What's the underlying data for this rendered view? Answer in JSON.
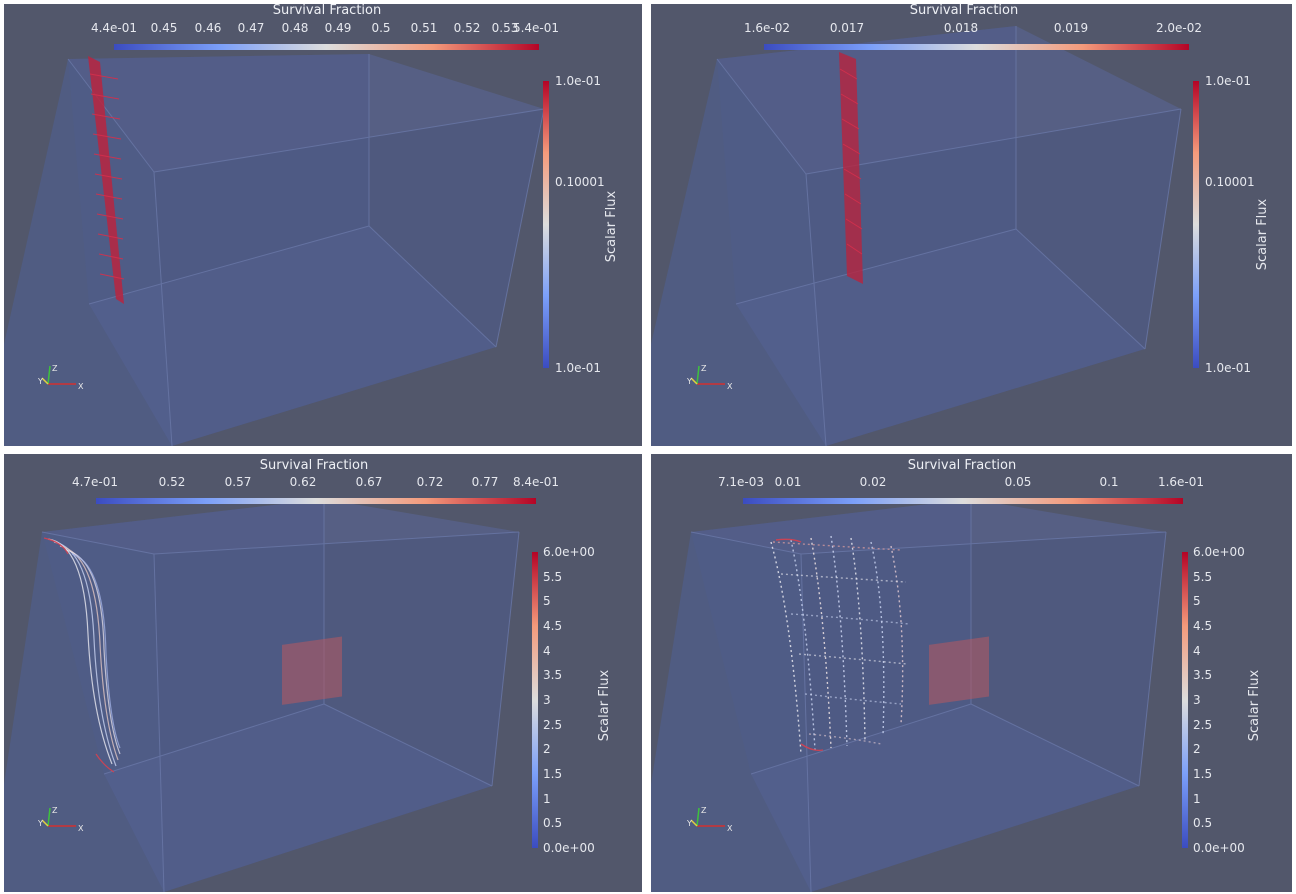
{
  "panels": [
    {
      "id": "top-left",
      "horizontal_legend": {
        "title": "Survival Fraction",
        "ticks": [
          "4.4e-01",
          "0.45",
          "0.46",
          "0.47",
          "0.48",
          "0.49",
          "0.5",
          "0.51",
          "0.52",
          "0.53",
          "5.4e-01"
        ]
      },
      "vertical_legend": {
        "title": "Scalar Flux",
        "ticks": [
          "1.0e-01",
          "0.10001",
          "1.0e-01"
        ]
      },
      "axes": {
        "x": "X",
        "y": "Y",
        "z": "Z"
      }
    },
    {
      "id": "top-right",
      "horizontal_legend": {
        "title": "Survival Fraction",
        "ticks": [
          "1.6e-02",
          "0.017",
          "0.018",
          "0.019",
          "2.0e-02"
        ]
      },
      "vertical_legend": {
        "title": "Scalar Flux",
        "ticks": [
          "1.0e-01",
          "0.10001",
          "1.0e-01"
        ]
      },
      "axes": {
        "x": "X",
        "y": "Y",
        "z": "Z"
      }
    },
    {
      "id": "bottom-left",
      "horizontal_legend": {
        "title": "Survival Fraction",
        "ticks": [
          "4.7e-01",
          "0.52",
          "0.57",
          "0.62",
          "0.67",
          "0.72",
          "0.77",
          "8.4e-01"
        ]
      },
      "vertical_legend": {
        "title": "Scalar Flux",
        "ticks": [
          "6.0e+00",
          "5.5",
          "5",
          "4.5",
          "4",
          "3.5",
          "3",
          "2.5",
          "2",
          "1.5",
          "1",
          "0.5",
          "0.0e+00"
        ]
      },
      "axes": {
        "x": "X",
        "y": "Y",
        "z": "Z"
      }
    },
    {
      "id": "bottom-right",
      "horizontal_legend": {
        "title": "Survival Fraction",
        "ticks": [
          "7.1e-03",
          "0.01",
          "0.02",
          "0.05",
          "0.1",
          "1.6e-01"
        ]
      },
      "vertical_legend": {
        "title": "Scalar Flux",
        "ticks": [
          "6.0e+00",
          "5.5",
          "5",
          "4.5",
          "4",
          "3.5",
          "3",
          "2.5",
          "2",
          "1.5",
          "1",
          "0.5",
          "0.0e+00"
        ]
      },
      "axes": {
        "x": "X",
        "y": "Y",
        "z": "Z"
      }
    }
  ],
  "colors": {
    "background": "#52576b",
    "box_face": "#4a5a8e",
    "colormap_low": "#3b4cc0",
    "colormap_mid": "#dddddd",
    "colormap_high": "#b40426"
  }
}
